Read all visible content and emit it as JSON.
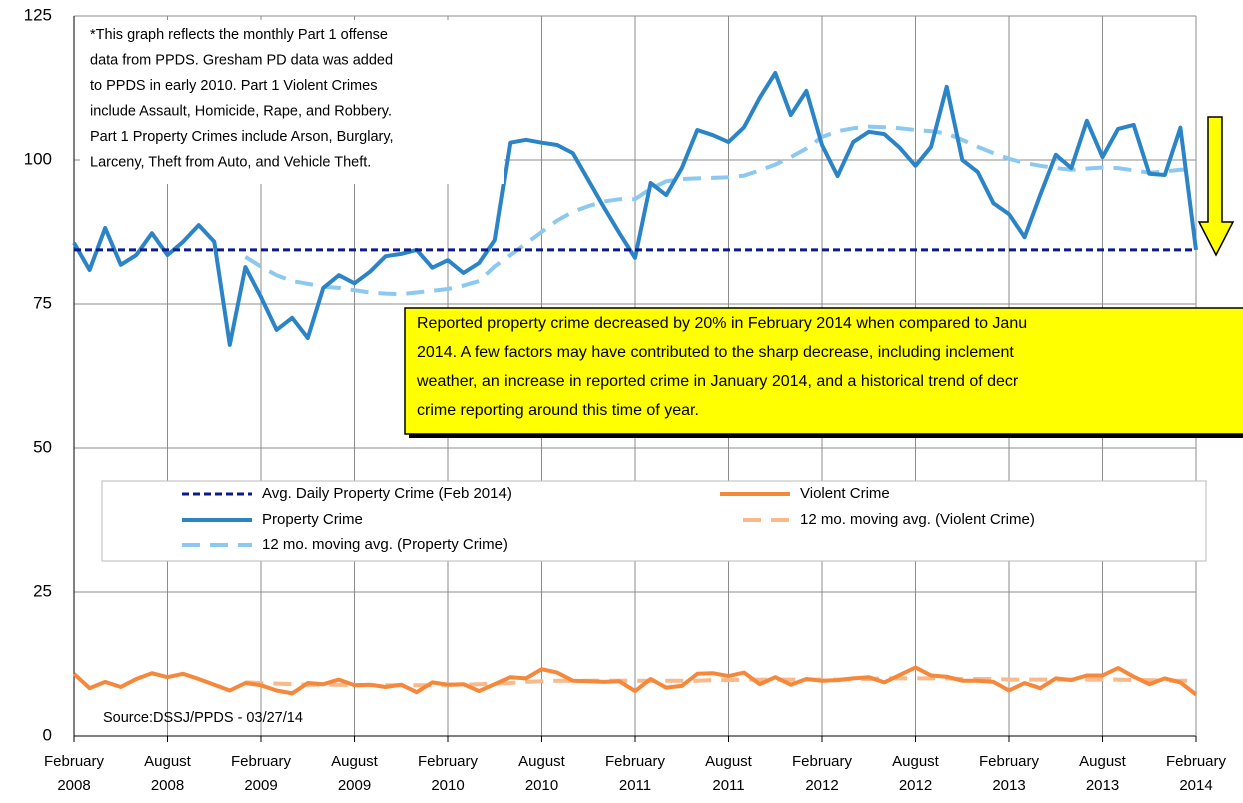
{
  "chart_data": {
    "type": "line",
    "categories": [
      "February 2008",
      null,
      null,
      null,
      null,
      null,
      "August 2008",
      null,
      null,
      null,
      null,
      null,
      "February 2009",
      null,
      null,
      null,
      null,
      null,
      "August 2009",
      null,
      null,
      null,
      null,
      null,
      "February 2010",
      null,
      null,
      null,
      null,
      null,
      "August 2010",
      null,
      null,
      null,
      null,
      null,
      "February 2011",
      null,
      null,
      null,
      null,
      null,
      "August 2011",
      null,
      null,
      null,
      null,
      null,
      "February 2012",
      null,
      null,
      null,
      null,
      null,
      "August 2012",
      null,
      null,
      null,
      null,
      null,
      "February 2013",
      null,
      null,
      null,
      null,
      null,
      "August 2013",
      null,
      null,
      null,
      null,
      null,
      "February 2014"
    ],
    "ylim": [
      0,
      125
    ],
    "yticks": [
      0,
      25,
      50,
      75,
      100,
      125
    ],
    "grid": true,
    "series": [
      {
        "name": "Avg. Daily Property Crime (Feb 2014)",
        "color": "#0b1a8c",
        "dashed": true,
        "values": [
          84.4,
          84.4,
          84.4,
          84.4,
          84.4,
          84.4,
          84.4,
          84.4,
          84.4,
          84.4,
          84.4,
          84.4,
          84.4,
          84.4,
          84.4,
          84.4,
          84.4,
          84.4,
          84.4,
          84.4,
          84.4,
          84.4,
          84.4,
          84.4,
          84.4,
          84.4,
          84.4,
          84.4,
          84.4,
          84.4,
          84.4,
          84.4,
          84.4,
          84.4,
          84.4,
          84.4,
          84.4,
          84.4,
          84.4,
          84.4,
          84.4,
          84.4,
          84.4,
          84.4,
          84.4,
          84.4,
          84.4,
          84.4,
          84.4,
          84.4,
          84.4,
          84.4,
          84.4,
          84.4,
          84.4,
          84.4,
          84.4,
          84.4,
          84.4,
          84.4,
          84.4,
          84.4,
          84.4,
          84.4,
          84.4,
          84.4,
          84.4,
          84.4,
          84.4,
          84.4,
          84.4,
          84.4,
          84.4
        ]
      },
      {
        "name": "Violent Crime",
        "color": "#f5883a",
        "dashed": false,
        "values": [
          10.8,
          8.3,
          9.4,
          8.5,
          9.9,
          10.9,
          10.2,
          10.8,
          9.9,
          8.9,
          7.9,
          9.2,
          8.8,
          7.9,
          7.4,
          9.2,
          9.0,
          9.8,
          8.8,
          8.9,
          8.5,
          8.9,
          7.6,
          9.3,
          8.9,
          9.0,
          7.8,
          9.0,
          10.2,
          10.0,
          11.6,
          11.0,
          9.6,
          9.5,
          9.4,
          9.5,
          7.8,
          9.9,
          8.4,
          8.7,
          10.8,
          10.9,
          10.4,
          11.0,
          9.0,
          10.2,
          8.9,
          9.9,
          9.6,
          9.7,
          10.0,
          10.2,
          9.3,
          10.6,
          11.9,
          10.5,
          10.3,
          9.6,
          9.6,
          9.4,
          7.9,
          9.2,
          8.3,
          10.0,
          9.7,
          10.5,
          10.5,
          11.8,
          10.3,
          9.0,
          10.0,
          9.3,
          7.2
        ]
      },
      {
        "name": "Property Crime",
        "color": "#2b84c6",
        "dashed": false,
        "values": [
          85.6,
          80.9,
          88.2,
          81.8,
          83.5,
          87.3,
          83.5,
          85.8,
          88.7,
          85.8,
          67.9,
          81.4,
          76.2,
          70.5,
          72.6,
          69.1,
          77.8,
          80.0,
          78.6,
          80.6,
          83.3,
          83.7,
          84.4,
          81.3,
          82.6,
          80.4,
          82.1,
          86.1,
          103.0,
          103.5,
          103.0,
          102.6,
          101.2,
          96.5,
          91.8,
          87.3,
          83.0,
          96.0,
          93.9,
          98.6,
          105.2,
          104.3,
          103.1,
          105.7,
          110.8,
          115.1,
          107.8,
          112.0,
          102.6,
          97.2,
          103.1,
          104.9,
          104.5,
          102.1,
          99.0,
          102.3,
          112.7,
          100.0,
          97.9,
          92.5,
          90.6,
          86.6,
          93.9,
          100.9,
          98.6,
          106.8,
          100.5,
          105.4,
          106.1,
          97.6,
          97.4,
          105.6,
          84.4
        ]
      },
      {
        "name": "12 mo. moving avg. (Violent Crime)",
        "color": "#f9b98b",
        "dashed": true,
        "values": [
          null,
          null,
          null,
          null,
          null,
          null,
          null,
          null,
          null,
          null,
          null,
          9.3,
          9.2,
          9.1,
          9.0,
          8.9,
          8.9,
          8.9,
          8.8,
          8.8,
          8.8,
          8.8,
          8.8,
          8.8,
          8.9,
          8.9,
          9.0,
          9.1,
          9.2,
          9.4,
          9.5,
          9.6,
          9.6,
          9.6,
          9.6,
          9.6,
          9.6,
          9.6,
          9.6,
          9.6,
          9.6,
          9.7,
          9.7,
          9.8,
          9.8,
          9.8,
          9.8,
          9.8,
          9.8,
          9.8,
          9.9,
          9.9,
          10.0,
          10.0,
          10.0,
          10.0,
          10.0,
          9.9,
          9.9,
          9.9,
          9.8,
          9.8,
          9.8,
          9.8,
          9.8,
          9.8,
          9.8,
          9.8,
          9.7,
          9.7,
          9.6,
          9.6,
          9.6
        ]
      },
      {
        "name": "12 mo. moving avg. (Property Crime)",
        "color": "#8cc8ef",
        "dashed": true,
        "values": [
          null,
          null,
          null,
          null,
          null,
          null,
          null,
          null,
          null,
          null,
          null,
          83.2,
          81.5,
          80,
          79,
          78.5,
          78,
          77.8,
          77.4,
          77,
          76.8,
          76.7,
          77,
          77.3,
          77.6,
          78.2,
          79,
          81.5,
          83.5,
          85.5,
          87.5,
          89.5,
          91,
          92,
          92.8,
          93.2,
          93.2,
          95,
          96.3,
          96.7,
          96.8,
          96.9,
          97,
          97.3,
          98.2,
          99.2,
          100.5,
          102,
          104,
          105,
          105.5,
          105.8,
          105.7,
          105.5,
          105.2,
          105,
          104.6,
          103.5,
          102.3,
          101.2,
          100.2,
          99.5,
          99.0,
          98.6,
          98.3,
          98.5,
          98.7,
          98.6,
          98.2,
          97.8,
          98,
          98.3,
          98.3
        ]
      }
    ],
    "note": [
      "*This graph reflects the monthly Part 1 offense",
      "data from PPDS. Gresham PD data was added",
      "to PPDS in early 2010.  Part 1 Violent Crimes",
      "include Assault, Homicide, Rape, and Robbery.",
      "Part 1 Property Crimes include Arson, Burglary,",
      "Larceny, Theft from Auto, and Vehicle Theft."
    ],
    "callout": [
      "Reported property crime decreased by 20% in February 2014 when compared to Janu",
      "2014.  A few factors may have contributed to the sharp decrease, including inclement",
      "weather, an increase in reported crime in January 2014, and a historical trend of decr",
      "crime reporting around this time of year."
    ],
    "source": "Source:DSSJ/PPDS  - 03/27/14"
  }
}
